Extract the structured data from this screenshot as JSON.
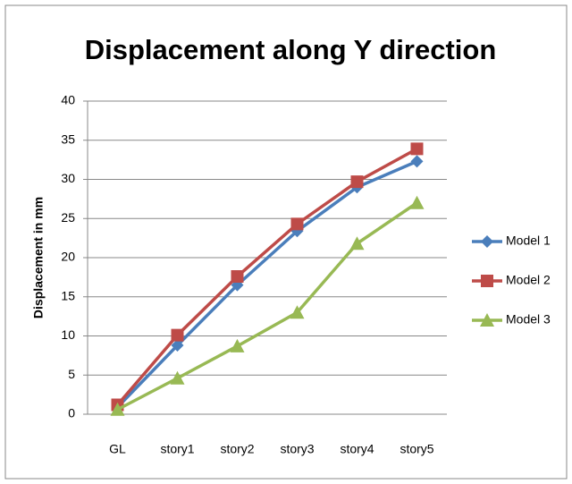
{
  "chart_data": {
    "type": "line",
    "title": "Displacement along Y direction",
    "y_label": "Displacement in mm",
    "categories": [
      "GL",
      "story1",
      "story2",
      "story3",
      "story4",
      "story5"
    ],
    "series": [
      {
        "name": "Model 1",
        "color": "#4a7ebb",
        "marker": "diamond",
        "values": [
          0.9,
          8.8,
          16.5,
          23.4,
          29,
          32.3
        ]
      },
      {
        "name": "Model 2",
        "color": "#be4b48",
        "marker": "square",
        "values": [
          1.2,
          10.1,
          17.6,
          24.3,
          29.7,
          33.9
        ]
      },
      {
        "name": "Model 3",
        "color": "#98b954",
        "marker": "triangle",
        "values": [
          0.6,
          4.6,
          8.7,
          13,
          21.8,
          27
        ]
      }
    ],
    "ylim": [
      0,
      40
    ],
    "yticks": [
      0,
      5,
      10,
      15,
      20,
      25,
      30,
      35,
      40
    ],
    "grid": true,
    "legend": "right"
  }
}
